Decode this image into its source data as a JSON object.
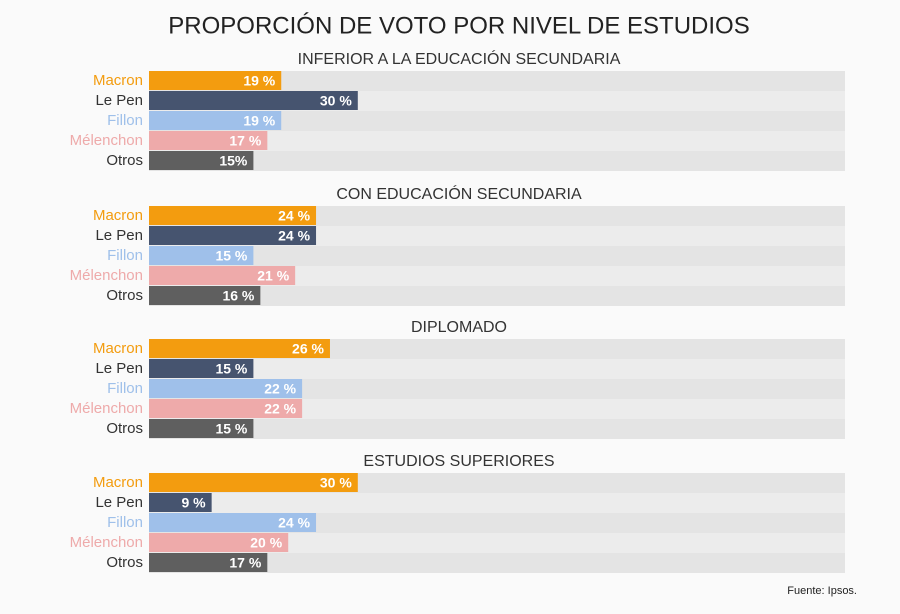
{
  "title": "PROPORCIÓN DE VOTO POR NIVEL DE ESTUDIOS",
  "source": "Fuente: Ipsos.",
  "chart_data": [
    {
      "type": "bar",
      "orientation": "horizontal",
      "subtitle": "INFERIOR A LA EDUCACIÓN SECUNDARIA",
      "categories": [
        "Macron",
        "Le Pen",
        "Fillon",
        "Mélenchon",
        "Otros"
      ],
      "values": [
        19,
        30,
        19,
        17,
        15
      ],
      "value_labels": [
        "19 %",
        "30 %",
        "19 %",
        "17 %",
        "15%"
      ],
      "colors": [
        "#f39c0f",
        "#46546f",
        "#9fc0ea",
        "#eeaaaa",
        "#5f5f5f"
      ],
      "xlim": [
        0,
        100
      ]
    },
    {
      "type": "bar",
      "orientation": "horizontal",
      "subtitle": "CON EDUCACIÓN SECUNDARIA",
      "categories": [
        "Macron",
        "Le Pen",
        "Fillon",
        "Mélenchon",
        "Otros"
      ],
      "values": [
        24,
        24,
        15,
        21,
        16
      ],
      "value_labels": [
        "24 %",
        "24 %",
        "15 %",
        "21 %",
        "16 %"
      ],
      "colors": [
        "#f39c0f",
        "#46546f",
        "#9fc0ea",
        "#eeaaaa",
        "#5f5f5f"
      ],
      "xlim": [
        0,
        100
      ]
    },
    {
      "type": "bar",
      "orientation": "horizontal",
      "subtitle": "DIPLOMADO",
      "categories": [
        "Macron",
        "Le Pen",
        "Fillon",
        "Mélenchon",
        "Otros"
      ],
      "values": [
        26,
        15,
        22,
        22,
        15
      ],
      "value_labels": [
        "26 %",
        "15 %",
        "22 %",
        "22 %",
        "15 %"
      ],
      "colors": [
        "#f39c0f",
        "#46546f",
        "#9fc0ea",
        "#eeaaaa",
        "#5f5f5f"
      ],
      "xlim": [
        0,
        100
      ]
    },
    {
      "type": "bar",
      "orientation": "horizontal",
      "subtitle": "ESTUDIOS SUPERIORES",
      "categories": [
        "Macron",
        "Le Pen",
        "Fillon",
        "Mélenchon",
        "Otros"
      ],
      "values": [
        30,
        9,
        24,
        20,
        17
      ],
      "value_labels": [
        "30 %",
        "9 %",
        "24 %",
        "20 %",
        "17 %"
      ],
      "colors": [
        "#f39c0f",
        "#46546f",
        "#9fc0ea",
        "#eeaaaa",
        "#5f5f5f"
      ],
      "xlim": [
        0,
        100
      ]
    }
  ]
}
